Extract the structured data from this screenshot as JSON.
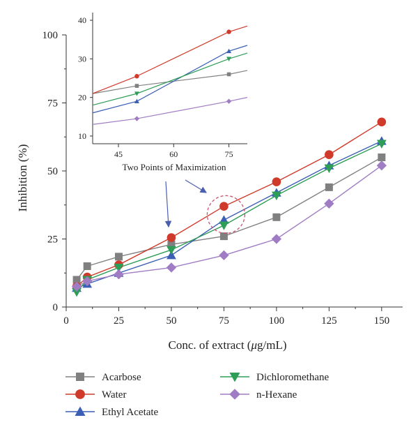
{
  "chart_data": [
    {
      "type": "line",
      "xlabel_prefix": "Conc. of extract (",
      "xlabel_mu": "μ",
      "xlabel_suffix": "g/mL)",
      "ylabel": "Inhibition (%)",
      "xlim": [
        0,
        160
      ],
      "ylim": [
        0,
        100
      ],
      "xticks": [
        0,
        25,
        50,
        75,
        100,
        125,
        150
      ],
      "yticks": [
        0,
        25,
        50,
        75,
        100
      ],
      "grid": false,
      "legend_position": "bottom",
      "series": [
        {
          "name": "Acarbose",
          "color": "#808080",
          "marker": "square",
          "x": [
            5,
            10,
            25,
            50,
            75,
            100,
            125,
            150
          ],
          "y": [
            10,
            15,
            18.5,
            23,
            26,
            33,
            44,
            55
          ]
        },
        {
          "name": "Water",
          "color": "#d03a2a",
          "marker": "circle",
          "x": [
            5,
            10,
            25,
            50,
            75,
            100,
            125,
            150
          ],
          "y": [
            7.5,
            11,
            15.5,
            25.5,
            37,
            46,
            56,
            68
          ]
        },
        {
          "name": "Ethyl Acetate",
          "color": "#3a5fb5",
          "marker": "triangle-up",
          "x": [
            5,
            10,
            25,
            50,
            75,
            100,
            125,
            150
          ],
          "y": [
            7,
            8.5,
            12.5,
            19,
            32,
            42,
            52,
            61
          ]
        },
        {
          "name": "Dichloromethane",
          "color": "#2e9d57",
          "marker": "triangle-down",
          "x": [
            5,
            10,
            25,
            50,
            75,
            100,
            125,
            150
          ],
          "y": [
            5.5,
            10,
            14.5,
            21,
            30,
            41,
            51,
            60
          ]
        },
        {
          "name": "n-Hexane",
          "color": "#a07cc4",
          "marker": "diamond",
          "x": [
            5,
            10,
            25,
            50,
            75,
            100,
            125,
            150
          ],
          "y": [
            7.5,
            9.5,
            12,
            14.5,
            19,
            25,
            38,
            52
          ]
        }
      ],
      "annotations": [
        {
          "type": "circle",
          "style": "dashed",
          "color": "#d05070",
          "center": [
            75,
            34
          ]
        }
      ]
    },
    {
      "type": "line",
      "title": "Two Points of Maximization",
      "xlim": [
        38,
        80
      ],
      "ylim": [
        8,
        42
      ],
      "xticks": [
        45,
        60,
        75
      ],
      "yticks": [
        10,
        20,
        30,
        40
      ],
      "series": [
        {
          "name": "Acarbose",
          "color": "#808080",
          "marker": "square",
          "x": [
            38,
            50,
            75,
            80
          ],
          "y": [
            21,
            23,
            26,
            27
          ]
        },
        {
          "name": "Water",
          "color": "#d03a2a",
          "marker": "circle",
          "x": [
            38,
            50,
            75,
            80
          ],
          "y": [
            21,
            25.5,
            37,
            38.5
          ]
        },
        {
          "name": "Ethyl Acetate",
          "color": "#3a5fb5",
          "marker": "triangle-up",
          "x": [
            38,
            50,
            75,
            80
          ],
          "y": [
            16,
            19,
            32,
            33.5
          ]
        },
        {
          "name": "Dichloromethane",
          "color": "#2e9d57",
          "marker": "triangle-down",
          "x": [
            38,
            50,
            75,
            80
          ],
          "y": [
            18,
            21,
            30,
            31.5
          ]
        },
        {
          "name": "n-Hexane",
          "color": "#a07cc4",
          "marker": "diamond",
          "x": [
            38,
            50,
            75,
            80
          ],
          "y": [
            13,
            14.5,
            19,
            20
          ]
        }
      ]
    }
  ],
  "arrow_color": "#4a5fb0"
}
